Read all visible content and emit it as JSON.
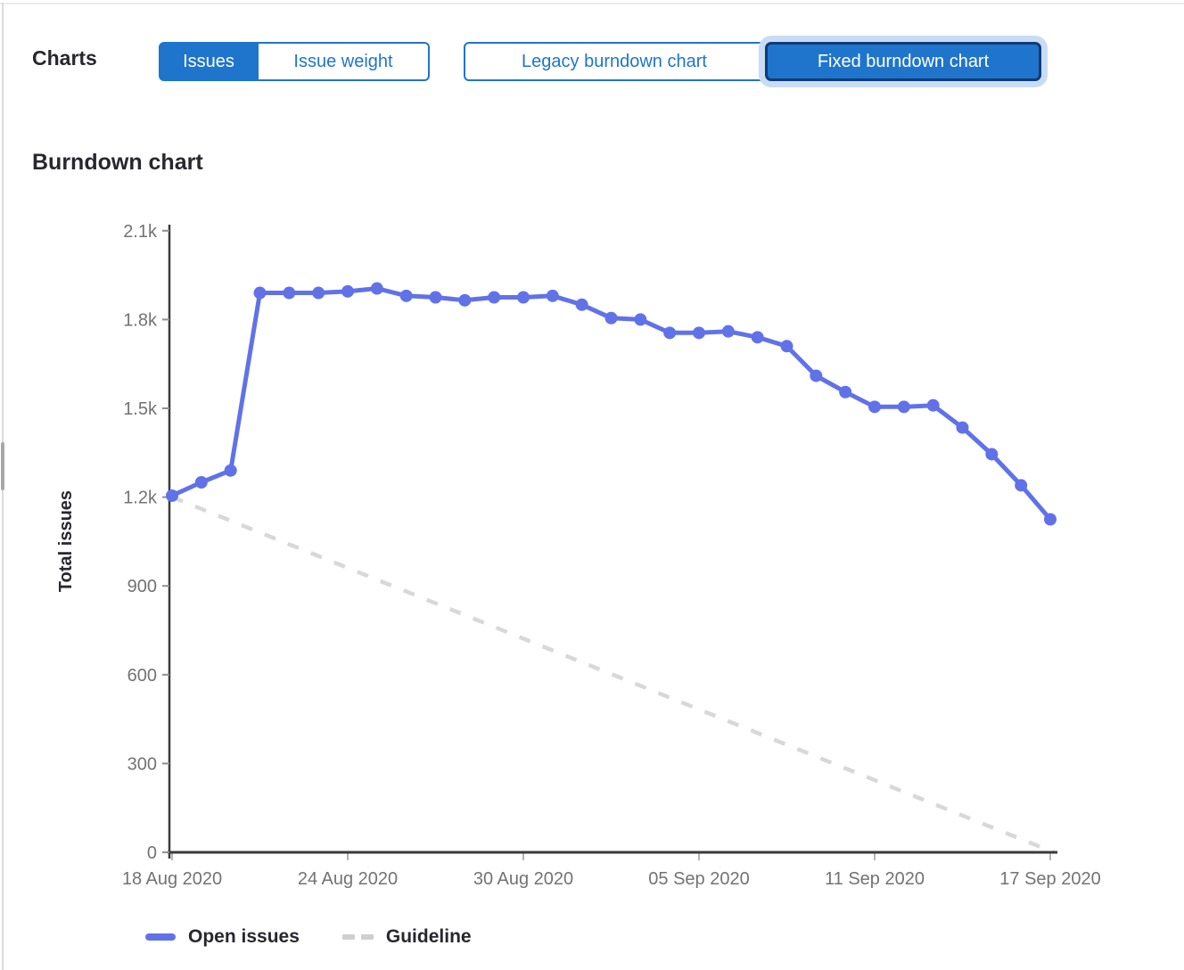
{
  "header": {
    "charts_label": "Charts",
    "metric_toggle": {
      "issues_label": "Issues",
      "issue_weight_label": "Issue weight",
      "selected": "Issues"
    },
    "chart_toggle": {
      "legacy_label": "Legacy burndown chart",
      "fixed_label": "Fixed burndown chart",
      "selected": "Fixed burndown chart"
    }
  },
  "section": {
    "heading": "Burndown chart"
  },
  "legend": {
    "open_issues": "Open issues",
    "guideline": "Guideline"
  },
  "colors": {
    "accent_blue": "#1f75cb",
    "selected_dark_border": "#0d3c78",
    "focus_ring": "#c9dcf4",
    "line_blue": "#6172e8",
    "guideline_gray": "#d8d8d8",
    "axis_dark": "#3a3a3a",
    "tick_gray": "#8f8f8f",
    "tick_label_gray": "#737373",
    "text_dark": "#28272d"
  },
  "chart_data": {
    "type": "line",
    "title": "Burndown chart",
    "xlabel": "",
    "ylabel": "Total issues",
    "ylim": [
      0,
      2100
    ],
    "grid": false,
    "legend_position": "bottom",
    "y_ticks": [
      {
        "value": 0,
        "label": "0"
      },
      {
        "value": 300,
        "label": "300"
      },
      {
        "value": 600,
        "label": "600"
      },
      {
        "value": 900,
        "label": "900"
      },
      {
        "value": 1200,
        "label": "1.2k"
      },
      {
        "value": 1500,
        "label": "1.5k"
      },
      {
        "value": 1800,
        "label": "1.8k"
      },
      {
        "value": 2100,
        "label": "2.1k"
      }
    ],
    "x_ticks": [
      {
        "index": 0,
        "label": "18 Aug 2020"
      },
      {
        "index": 6,
        "label": "24 Aug 2020"
      },
      {
        "index": 12,
        "label": "30 Aug 2020"
      },
      {
        "index": 18,
        "label": "05 Sep 2020"
      },
      {
        "index": 24,
        "label": "11 Sep 2020"
      },
      {
        "index": 30,
        "label": "17 Sep 2020"
      }
    ],
    "dates": [
      "18 Aug 2020",
      "19 Aug 2020",
      "20 Aug 2020",
      "21 Aug 2020",
      "22 Aug 2020",
      "23 Aug 2020",
      "24 Aug 2020",
      "25 Aug 2020",
      "26 Aug 2020",
      "27 Aug 2020",
      "28 Aug 2020",
      "29 Aug 2020",
      "30 Aug 2020",
      "31 Aug 2020",
      "01 Sep 2020",
      "02 Sep 2020",
      "03 Sep 2020",
      "04 Sep 2020",
      "05 Sep 2020",
      "06 Sep 2020",
      "07 Sep 2020",
      "08 Sep 2020",
      "09 Sep 2020",
      "10 Sep 2020",
      "11 Sep 2020",
      "12 Sep 2020",
      "13 Sep 2020",
      "14 Sep 2020",
      "15 Sep 2020",
      "16 Sep 2020",
      "17 Sep 2020"
    ],
    "series": [
      {
        "name": "Open issues",
        "style": "solid",
        "color": "#6172e8",
        "values": [
          1205,
          1250,
          1290,
          1890,
          1890,
          1890,
          1895,
          1905,
          1880,
          1875,
          1865,
          1875,
          1875,
          1880,
          1850,
          1805,
          1800,
          1755,
          1755,
          1760,
          1740,
          1710,
          1610,
          1555,
          1505,
          1505,
          1510,
          1435,
          1345,
          1240,
          1125
        ]
      },
      {
        "name": "Guideline",
        "style": "dashed",
        "color": "#d8d8d8",
        "endpoints": {
          "start_value": 1200,
          "end_value": 0
        }
      }
    ]
  }
}
